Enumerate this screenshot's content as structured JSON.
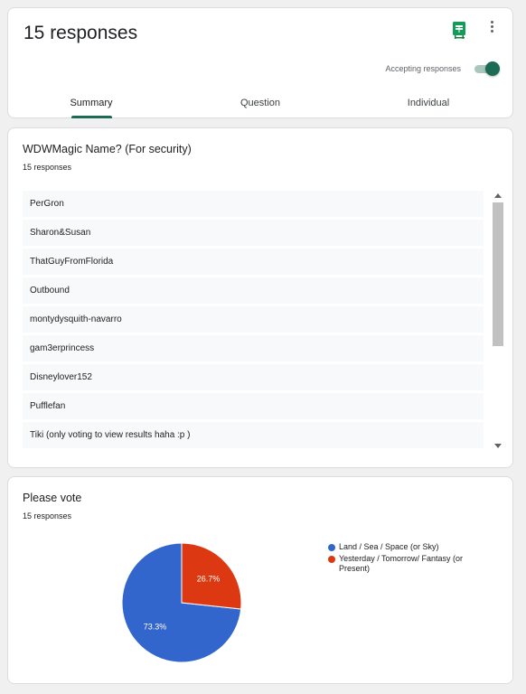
{
  "header": {
    "title": "15 responses",
    "sheets_icon": "sheets-icon",
    "more_icon": "more-vert-icon",
    "accepting_label": "Accepting responses",
    "accepting_on": true,
    "tabs": [
      {
        "label": "Summary",
        "active": true
      },
      {
        "label": "Question",
        "active": false
      },
      {
        "label": "Individual",
        "active": false
      }
    ],
    "accent_color": "#1e6b55"
  },
  "question1": {
    "title": "WDWMagic Name? (For security)",
    "count": "15 responses",
    "responses": [
      "PerGron",
      "Sharon&Susan",
      "ThatGuyFromFlorida",
      "Outbound",
      "montydysquith-navarro",
      "gam3erprincess",
      "Disneylover152",
      "Pufflefan",
      "Tiki (only voting to view results haha :p )"
    ]
  },
  "question2": {
    "title": "Please vote",
    "count": "15 responses"
  },
  "chart_data": {
    "type": "pie",
    "title": "",
    "slices": [
      {
        "label": "Land / Sea / Space (or Sky)",
        "value": 73.3,
        "display": "73.3%",
        "color": "#3366cc"
      },
      {
        "label": "Yesterday / Tomorrow/ Fantasy (or Present)",
        "value": 26.7,
        "display": "26.7%",
        "color": "#dc3912"
      }
    ],
    "legend_position": "right"
  }
}
